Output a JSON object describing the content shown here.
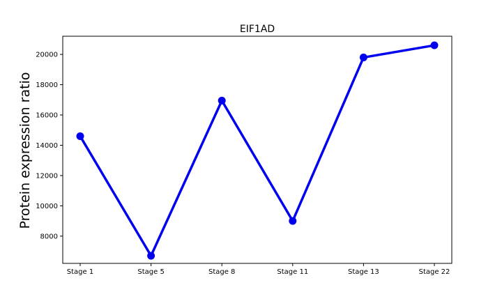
{
  "chart_data": {
    "type": "line",
    "title": "EIF1AD",
    "xlabel": "",
    "ylabel": "Protein expression ratio",
    "categories": [
      "Stage 1",
      "Stage 5",
      "Stage 8",
      "Stage 11",
      "Stage 13",
      "Stage 22"
    ],
    "series": [
      {
        "values": [
          14600,
          6700,
          16950,
          9000,
          19800,
          20600
        ],
        "color": "#0000ee"
      }
    ],
    "ylim": [
      6200,
      21200
    ],
    "yticks": [
      8000,
      10000,
      12000,
      14000,
      16000,
      18000,
      20000
    ],
    "grid": false,
    "marker": "circle"
  }
}
